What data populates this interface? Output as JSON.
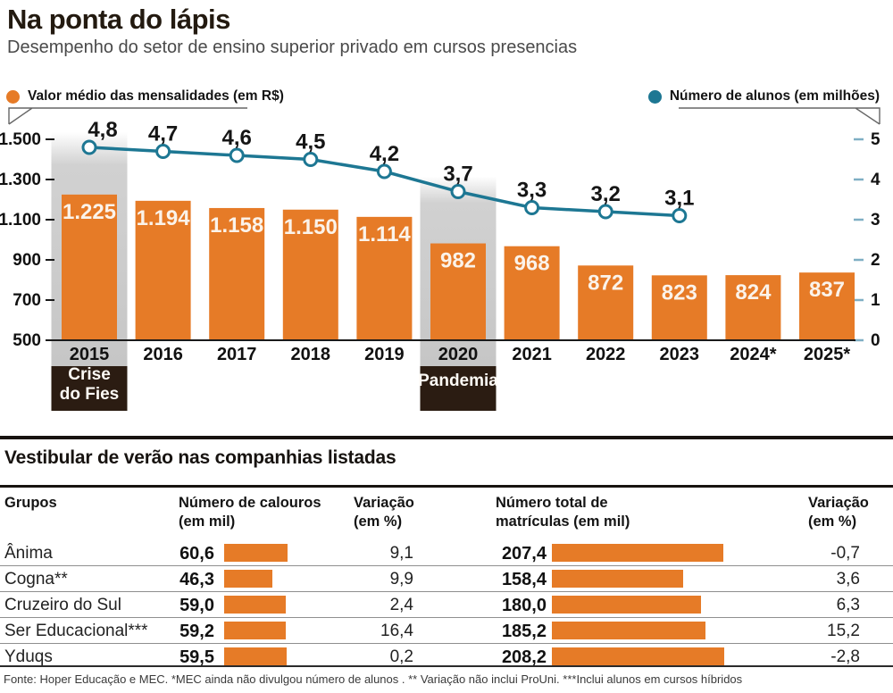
{
  "header": {
    "title": "Na ponta do lápis",
    "subtitle": "Desempenho do setor de ensino superior privado em cursos presencias"
  },
  "legend": {
    "bars_label": "Valor médio das mensalidades (em R$)",
    "line_label": "Número de alunos (em milhões)"
  },
  "colors": {
    "orange": "#E67B27",
    "teal": "#1D7793",
    "teal_tick": "#7FAFC4",
    "band_gray": "#C9C9C9",
    "annotation_box": "#2B1C12",
    "axis": "#1A1A1A"
  },
  "chart_data": {
    "type": "combo",
    "categories": [
      "2015",
      "2016",
      "2017",
      "2018",
      "2019",
      "2020",
      "2021",
      "2022",
      "2023",
      "2024*",
      "2025*"
    ],
    "series": [
      {
        "name": "Valor médio das mensalidades (em R$)",
        "type": "bar",
        "values": [
          1225,
          1194,
          1158,
          1150,
          1114,
          982,
          968,
          872,
          823,
          824,
          837
        ],
        "labels": [
          "1.225",
          "1.194",
          "1.158",
          "1.150",
          "1.114",
          "982",
          "968",
          "872",
          "823",
          "824",
          "837"
        ]
      },
      {
        "name": "Número de alunos (em milhões)",
        "type": "line",
        "values": [
          4.8,
          4.7,
          4.6,
          4.5,
          4.2,
          3.7,
          3.3,
          3.2,
          3.1,
          null,
          null
        ],
        "labels": [
          "4,8",
          "4,7",
          "4,6",
          "4,5",
          "4,2",
          "3,7",
          "3,3",
          "3,2",
          "3,1"
        ]
      }
    ],
    "left_axis": {
      "ticks": [
        "1.500",
        "1.300",
        "1.100",
        "900",
        "700",
        "500"
      ],
      "values": [
        1500,
        1300,
        1100,
        900,
        700,
        500
      ],
      "min": 500,
      "max": 1500
    },
    "right_axis": {
      "ticks": [
        "5",
        "4",
        "3",
        "2",
        "1",
        "0"
      ],
      "values": [
        5,
        4,
        3,
        2,
        1,
        0
      ],
      "min": 0,
      "max": 5
    },
    "grid": false,
    "annotations": [
      {
        "category": "2015",
        "label_lines": [
          "Crise",
          "do Fies"
        ]
      },
      {
        "category": "2020",
        "label_lines": [
          "Pandemia"
        ]
      }
    ]
  },
  "table": {
    "title": "Vestibular de verão nas companhias listadas",
    "columns": [
      {
        "lines": [
          "Grupos"
        ]
      },
      {
        "lines": [
          "Número de calouros",
          "(em mil)"
        ]
      },
      {
        "lines": [
          "Variação",
          "(em %)"
        ]
      },
      {
        "lines": [
          "Número total de",
          "matrículas (em mil)"
        ]
      },
      {
        "lines": [
          "Variação",
          "(em %)"
        ]
      }
    ],
    "rows": [
      {
        "group": "Ânima",
        "calouros": 60.6,
        "var_calouros": 9.1,
        "matriculas": 207.4,
        "var_matriculas": -0.7
      },
      {
        "group": "Cogna**",
        "calouros": 46.3,
        "var_calouros": 9.9,
        "matriculas": 158.4,
        "var_matriculas": 3.6
      },
      {
        "group": "Cruzeiro do Sul",
        "calouros": 59.0,
        "var_calouros": 2.4,
        "matriculas": 180.0,
        "var_matriculas": 6.3
      },
      {
        "group": "Ser Educacional***",
        "calouros": 59.2,
        "var_calouros": 16.4,
        "matriculas": 185.2,
        "var_matriculas": 15.2
      },
      {
        "group": "Yduqs",
        "calouros": 59.5,
        "var_calouros": 0.2,
        "matriculas": 208.2,
        "var_matriculas": -2.8
      }
    ]
  },
  "footer": {
    "source": "Fonte: Hoper Educação e MEC. *MEC ainda não divulgou  número de alunos . ** Variação não inclui ProUni. ***Inclui alunos em cursos híbridos"
  }
}
